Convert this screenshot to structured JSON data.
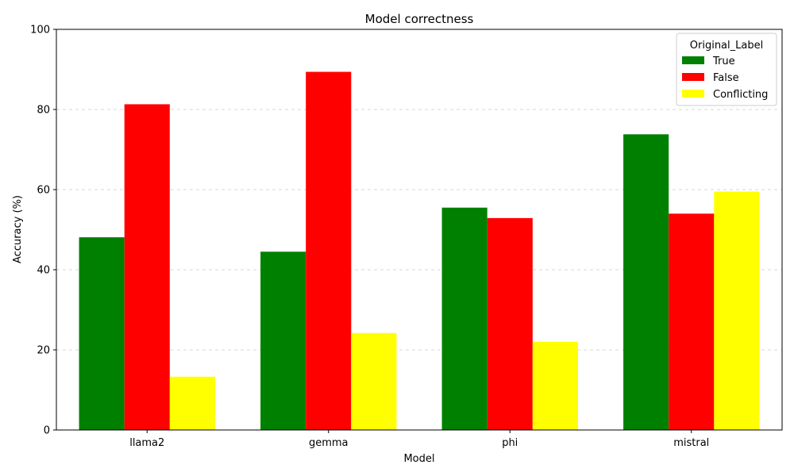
{
  "chart_data": {
    "type": "bar",
    "title": "Model correctness",
    "xlabel": "Model",
    "ylabel": "Accuracy (%)",
    "categories": [
      "llama2",
      "gemma",
      "phi",
      "mistral"
    ],
    "ylim": [
      0,
      100
    ],
    "yticks": [
      0,
      20,
      40,
      60,
      80,
      100
    ],
    "grid": "y-dashed",
    "legend": {
      "title": "Original_Label",
      "placement": "top-right"
    },
    "series": [
      {
        "name": "True",
        "color": "#008000",
        "values": [
          48.1,
          44.5,
          55.5,
          73.8
        ]
      },
      {
        "name": "False",
        "color": "#ff0000",
        "values": [
          81.3,
          89.4,
          52.9,
          54.0
        ]
      },
      {
        "name": "Conflicting",
        "color": "#ffff00",
        "values": [
          13.3,
          24.2,
          22.0,
          59.5
        ]
      }
    ]
  }
}
